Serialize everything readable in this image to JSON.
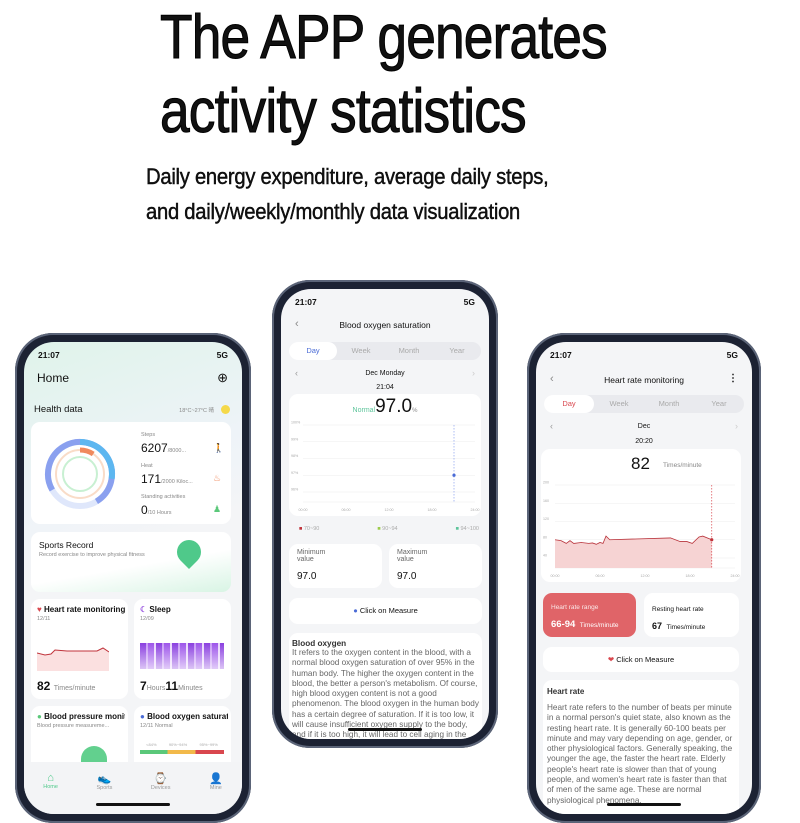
{
  "headline": {
    "line1": "The APP generates",
    "line2": "activity statistics",
    "sub1": "Daily energy expenditure, average daily steps,",
    "sub2": "and daily/weekly/monthly data visualization"
  },
  "status": {
    "time": "21:07",
    "network": "5G"
  },
  "home": {
    "title": "Home",
    "section": "Health data",
    "weather": "18°C~27°C 晴",
    "steps": {
      "label": "Steps",
      "value": "6207",
      "goal": "/8000..."
    },
    "heat": {
      "label": "Heat",
      "value": "171",
      "goal": "/2000 Kiloc..."
    },
    "standing": {
      "label": "Standing activities",
      "value": "0",
      "goal": "/10 Hours"
    },
    "sports": {
      "title": "Sports Record",
      "desc": "Record exercise to improve physical fitness"
    },
    "heart": {
      "title": "Heart rate monitoring",
      "date": "12/11",
      "value": "82",
      "unit": "Times/minute"
    },
    "sleep": {
      "title": "Sleep",
      "date": "12/09",
      "hours": "7",
      "hours_unit": "Hours",
      "minutes": "11",
      "minutes_unit": "Minutes"
    },
    "bp": {
      "title": "Blood pressure monitoring",
      "desc": "Blood pressure measureme..."
    },
    "oxy": {
      "title": "Blood oxygen saturation",
      "desc": "12/11 Normal",
      "legend": [
        "<84%",
        "90%~94%",
        "95%~99%"
      ]
    },
    "nav": [
      "Home",
      "Sports",
      "Devices",
      "Mine"
    ]
  },
  "oxygen": {
    "title": "Blood oxygen saturation",
    "tabs": [
      "Day",
      "Week",
      "Month",
      "Year"
    ],
    "date": "Dec Monday",
    "time": "21:04",
    "status": "Normal",
    "value": "97.0",
    "unit": "%",
    "y_ticks": [
      "100%",
      "99%",
      "98%",
      "97%",
      "96%"
    ],
    "x_ticks": [
      "00:00",
      "06:00",
      "12:00",
      "18:00",
      "24:00"
    ],
    "legend": [
      "70~90",
      "90~94",
      "94~100"
    ],
    "min_label": "Minimum value",
    "min_value": "97.0",
    "max_label": "Maximum value",
    "max_value": "97.0",
    "measure": "Click on Measure",
    "info_title": "Blood oxygen",
    "info_text": "It refers to the oxygen content in the blood, with a normal blood oxygen saturation of over 95% in the human body. The higher the oxygen content in the blood, the better a person's metabolism. Of course, high blood oxygen content is not a good phenomenon. The blood oxygen in the human body has a certain degree of saturation. If it is too low, it will cause insufficient oxygen supply to the body, and if it is too high, it will lead to cell aging in the body."
  },
  "heartrate": {
    "title": "Heart rate monitoring",
    "tabs": [
      "Day",
      "Week",
      "Month",
      "Year"
    ],
    "date": "Dec",
    "time": "20:20",
    "value": "82",
    "unit": "Times/minute",
    "y_ticks": [
      "200",
      "160",
      "120",
      "80",
      "40"
    ],
    "x_ticks": [
      "00:00",
      "06:00",
      "12:00",
      "18:00",
      "24:00"
    ],
    "series": [
      [
        0,
        80
      ],
      [
        0.8,
        78
      ],
      [
        1.5,
        72
      ],
      [
        2,
        78
      ],
      [
        2.5,
        72
      ],
      [
        3.5,
        74
      ],
      [
        4.5,
        72
      ],
      [
        5,
        73
      ],
      [
        5.5,
        70
      ],
      [
        6,
        74
      ],
      [
        6.4,
        72
      ],
      [
        6.8,
        88
      ],
      [
        7.3,
        80
      ],
      [
        15.4,
        84
      ],
      [
        16.7,
        76
      ],
      [
        17.6,
        76
      ],
      [
        18.3,
        72
      ],
      [
        19.2,
        86
      ],
      [
        19.7,
        88
      ],
      [
        20.9,
        80
      ]
    ],
    "range_label": "Heart rate range",
    "range_value": "66-94",
    "range_unit": "Times/minute",
    "resting_label": "Resting heart rate",
    "resting_value": "67",
    "resting_unit": "Times/minute",
    "measure": "Click on Measure",
    "info_title": "Heart rate",
    "info_text": "Heart rate refers to the number of beats per minute in a normal person's quiet state, also known as the resting heart rate. It is generally 60-100 beats per minute and may vary depending on age, gender, or other physiological factors. Generally speaking, the younger the age, the faster the heart rate. Elderly people's heart rate is slower than that of young people, and women's heart rate is faster than that of men of the same age. These are normal physiological phenomena."
  },
  "colors": {
    "heart": "#d9474e",
    "steps": "#5db7f0",
    "heat": "#f08a5d",
    "standing": "#5bc87a",
    "accent_blue": "#4a6bd6"
  }
}
